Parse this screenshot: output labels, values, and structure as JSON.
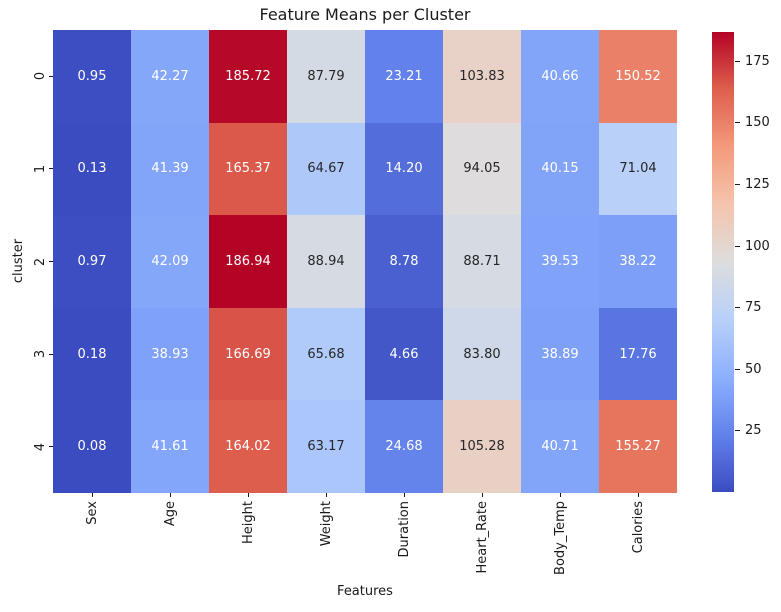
{
  "chart_data": {
    "type": "heatmap",
    "title": "Feature Means per Cluster",
    "xlabel": "Features",
    "ylabel": "cluster",
    "columns": [
      "Sex",
      "Age",
      "Height",
      "Weight",
      "Duration",
      "Heart_Rate",
      "Body_Temp",
      "Calories"
    ],
    "rows": [
      "0",
      "1",
      "2",
      "3",
      "4"
    ],
    "values": [
      [
        0.95,
        42.27,
        185.72,
        87.79,
        23.21,
        103.83,
        40.66,
        150.52
      ],
      [
        0.13,
        41.39,
        165.37,
        64.67,
        14.2,
        94.05,
        40.15,
        71.04
      ],
      [
        0.97,
        42.09,
        186.94,
        88.94,
        8.78,
        88.71,
        39.53,
        38.22
      ],
      [
        0.18,
        38.93,
        166.69,
        65.68,
        4.66,
        83.8,
        38.89,
        17.76
      ],
      [
        0.08,
        41.61,
        164.02,
        63.17,
        24.68,
        105.28,
        40.71,
        155.27
      ]
    ],
    "vmin": 0.08,
    "vmax": 186.94,
    "colormap": "coolwarm",
    "annotation_format": ".2f",
    "colorbar": {
      "position": "right",
      "ticks": [
        25,
        50,
        75,
        100,
        125,
        150,
        175
      ]
    },
    "colors": {
      "annotation_dark": "#262626",
      "annotation_light": "#ffffff",
      "background": "#ffffff",
      "cmap_low": "#3b4cc0",
      "cmap_mid": "#dddddd",
      "cmap_high": "#b40426"
    },
    "legend": "none",
    "grid": false
  }
}
